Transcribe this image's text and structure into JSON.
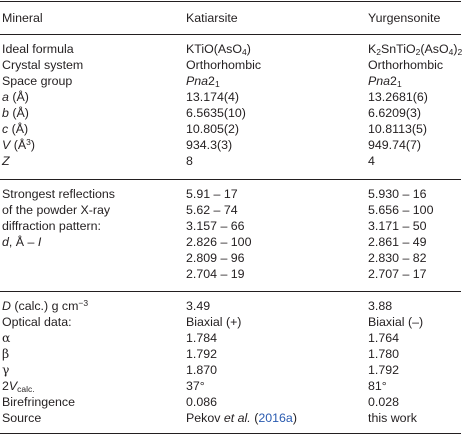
{
  "header": {
    "col1": "Mineral",
    "col2": "Katiarsite",
    "col3": "Yurgensonite"
  },
  "section1": {
    "ideal_formula": {
      "label": "Ideal formula",
      "k_pre": "KTiO(AsO",
      "k_sub": "4",
      "k_post": ")",
      "y_k": "K",
      "y_sub1": "2",
      "y_mid": "SnTiO",
      "y_sub2": "2",
      "y_mid2": "(AsO",
      "y_sub3": "4",
      "y_post": ")",
      "y_sub4": "2"
    },
    "crystal_system": {
      "label": "Crystal system",
      "k": "Orthorhombic",
      "y": "Orthorhombic"
    },
    "space_group": {
      "label": "Space group",
      "k_italic": "Pna",
      "k_num": "2",
      "k_sub": "1",
      "y_italic": "Pna",
      "y_num": "2",
      "y_sub": "1"
    },
    "a": {
      "sym": "a",
      "unit": " (Å)",
      "k": "13.174(4)",
      "y": "13.2681(6)"
    },
    "b": {
      "sym": "b",
      "unit": " (Å)",
      "k": "6.5635(10)",
      "y": "6.6209(3)"
    },
    "c": {
      "sym": "c",
      "unit": " (Å)",
      "k": "10.805(2)",
      "y": "10.8113(5)"
    },
    "v": {
      "sym": "V",
      "unit_pre": " (Å",
      "unit_sup": "3",
      "unit_post": ")",
      "k": "934.3(3)",
      "y": "949.74(7)"
    },
    "z": {
      "sym": "Z",
      "k": "8",
      "y": "4"
    }
  },
  "section2": {
    "label_lines": [
      "Strongest reflections",
      "of the powder X-ray",
      "diffraction pattern:"
    ],
    "label_last": {
      "d": "d",
      "mid": ", Å – ",
      "i": "I"
    },
    "katiarsite": [
      "5.91 – 17",
      "5.62 – 74",
      "3.157 – 66",
      "2.826 – 100",
      "2.809 – 96",
      "2.704 – 19"
    ],
    "yurgensonite": [
      "5.930 – 16",
      "5.656 – 100",
      "3.171 – 50",
      "2.861 – 49",
      "2.830 – 82",
      "2.707 – 17"
    ]
  },
  "section3": {
    "density": {
      "sym": "D",
      "mid": " (calc.) g cm",
      "sup": "−3",
      "k": "3.49",
      "y": "3.88"
    },
    "optical": {
      "label": "Optical data:",
      "k": "Biaxial (+)",
      "y": "Biaxial (–)"
    },
    "alpha": {
      "label": "α",
      "k": "1.784",
      "y": "1.764"
    },
    "beta": {
      "label": "β",
      "k": "1.792",
      "y": "1.780"
    },
    "gamma": {
      "label": "γ",
      "k": "1.870",
      "y": "1.792"
    },
    "twov": {
      "num": "2",
      "sym": "V",
      "sub": "calc.",
      "k": "37°",
      "y": "81°"
    },
    "biref": {
      "label": "Birefringence",
      "k": "0.086",
      "y": "0.028"
    },
    "source": {
      "label": "Source",
      "k_pre": "Pekov ",
      "k_etal": "et al.",
      "k_open": " (",
      "k_link": "2016a",
      "k_close": ")",
      "y": "this work"
    }
  }
}
